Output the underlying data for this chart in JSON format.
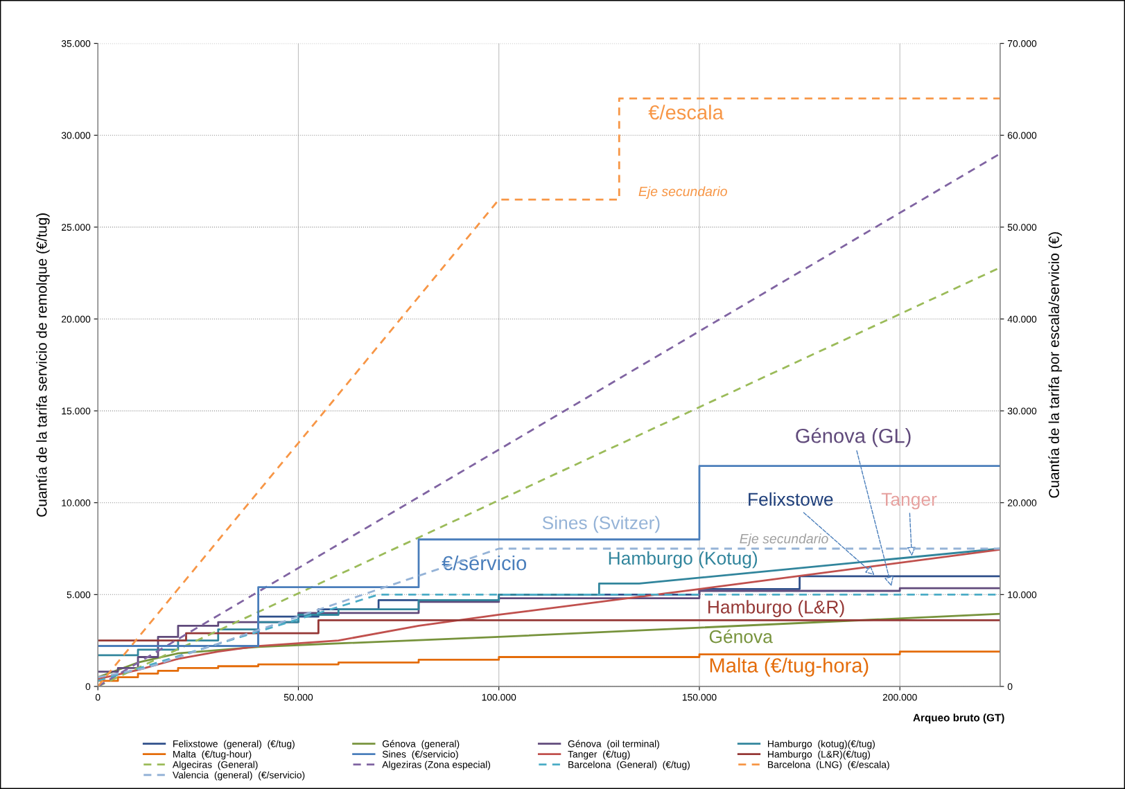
{
  "chart_data": {
    "type": "line",
    "xlabel": "Arqueo bruto (GT)",
    "ylabel": "Cuantía de la tarifa servicio de remolque (€/tug)",
    "y2label": "Cuantía de la tarifa por escala/servicio (€)",
    "xlim": [
      0,
      225000
    ],
    "xticks": [
      {
        "value": 0,
        "label": "0"
      },
      {
        "value": 50000,
        "label": "50.000"
      },
      {
        "value": 100000,
        "label": "100.000"
      },
      {
        "value": 150000,
        "label": "150.000"
      },
      {
        "value": 200000,
        "label": "200.000"
      }
    ],
    "ylim": [
      0,
      35000
    ],
    "yticks": [
      {
        "value": 0,
        "label": "0"
      },
      {
        "value": 5000,
        "label": "5.000"
      },
      {
        "value": 10000,
        "label": "10.000"
      },
      {
        "value": 15000,
        "label": "15.000"
      },
      {
        "value": 20000,
        "label": "20.000"
      },
      {
        "value": 25000,
        "label": "25.000"
      },
      {
        "value": 30000,
        "label": "30.000"
      },
      {
        "value": 35000,
        "label": "35.000"
      }
    ],
    "y2lim": [
      0,
      70000
    ],
    "y2ticks": [
      {
        "value": 0,
        "label": "0"
      },
      {
        "value": 10000,
        "label": "10.000"
      },
      {
        "value": 20000,
        "label": "20.000"
      },
      {
        "value": 30000,
        "label": "30.000"
      },
      {
        "value": 40000,
        "label": "40.000"
      },
      {
        "value": 50000,
        "label": "50.000"
      },
      {
        "value": 60000,
        "label": "60.000"
      },
      {
        "value": 70000,
        "label": "70.000"
      }
    ],
    "grid": true,
    "legend": "bottom",
    "marker": "none",
    "series": [
      {
        "name": "Felixstowe  (general)  (€/tug)",
        "type": "step",
        "color": "#2e4f8a",
        "x": [
          0,
          40000,
          55000,
          70000,
          100000,
          150000,
          175000,
          225000
        ],
        "values": [
          2200,
          3800,
          4200,
          4700,
          5000,
          5300,
          6000,
          6000
        ]
      },
      {
        "name": "Génova  (general)",
        "color": "#77933c",
        "x": [
          0,
          10000,
          20000,
          40000,
          50000,
          100000,
          150000,
          225000
        ],
        "values": [
          500,
          1300,
          1800,
          2150,
          2250,
          2700,
          3200,
          3950
        ]
      },
      {
        "name": "Génova  (oil terminal)",
        "type": "step",
        "color": "#604a7b",
        "x": [
          0,
          5000,
          10000,
          15000,
          20000,
          30000,
          50000,
          80000,
          100000,
          150000,
          200000,
          225000
        ],
        "values": [
          800,
          1000,
          1600,
          2700,
          3300,
          3500,
          4000,
          4600,
          4800,
          5200,
          5350,
          5350
        ]
      },
      {
        "name": "Hamburgo  (kotug)(€/tug)",
        "color": "#31859c",
        "x": [
          0,
          10000,
          10000,
          20000,
          20000,
          30000,
          30000,
          40000,
          40000,
          50000,
          50000,
          60000,
          60000,
          80000,
          80000,
          100000,
          100000,
          125000,
          125000,
          135000,
          225000
        ],
        "values": [
          1700,
          1700,
          2000,
          2000,
          2500,
          2500,
          3100,
          3100,
          3500,
          3500,
          3900,
          3900,
          4200,
          4200,
          4700,
          4700,
          5000,
          5000,
          5600,
          5600,
          7500
        ]
      },
      {
        "name": "Malta  (€/tug-hour)",
        "type": "step",
        "color": "#e46c0a",
        "x": [
          0,
          5000,
          10000,
          15000,
          20000,
          30000,
          40000,
          60000,
          80000,
          100000,
          150000,
          200000,
          225000
        ],
        "values": [
          300,
          500,
          700,
          850,
          1000,
          1100,
          1200,
          1300,
          1450,
          1600,
          1750,
          1900,
          1900
        ]
      },
      {
        "name": "Sines  (€/servicio)",
        "type": "step",
        "axis": "y2",
        "color": "#4a7ebb",
        "x": [
          0,
          40000,
          80000,
          150000,
          225000
        ],
        "values": [
          4400,
          10800,
          16000,
          24000,
          24000
        ]
      },
      {
        "name": "Tanger  (€/tug)",
        "color": "#c0504d",
        "x": [
          0,
          10000,
          20000,
          30000,
          40000,
          60000,
          80000,
          100000,
          150000,
          225000
        ],
        "values": [
          400,
          900,
          1500,
          1900,
          2200,
          2500,
          3300,
          3900,
          5300,
          7450
        ]
      },
      {
        "name": "Hamburgo  (L&R)(€/tug)",
        "type": "step",
        "color": "#953735",
        "x": [
          0,
          22000,
          55000,
          225000
        ],
        "values": [
          2500,
          2900,
          3600,
          3600
        ]
      },
      {
        "name": "Algeciras  (General)",
        "line_style": "dashed",
        "color": "#9bbb59",
        "x": [
          0,
          225000
        ],
        "values": [
          0,
          22800
        ]
      },
      {
        "name": "Algeziras (Zona especial)",
        "line_style": "dashed",
        "color": "#8064a2",
        "x": [
          0,
          225000
        ],
        "values": [
          0,
          29000
        ]
      },
      {
        "name": "Barcelona  (General)  (€/tug)",
        "line_style": "dashed",
        "color": "#4bacc6",
        "x": [
          0,
          70000,
          225000
        ],
        "values": [
          300,
          5000,
          5000
        ]
      },
      {
        "name": "Barcelona  (LNG)  (€/escala)",
        "line_style": "dashed",
        "axis": "y2",
        "color": "#f79646",
        "x": [
          0,
          100000,
          130000,
          130000,
          225000
        ],
        "values": [
          0,
          53000,
          53000,
          64000,
          64000
        ]
      },
      {
        "name": "Valencia  (general)  (€/servicio)",
        "line_style": "dashed",
        "axis": "y2",
        "color": "#95b3d7",
        "x": [
          0,
          12000,
          100000,
          225000
        ],
        "values": [
          1000,
          2000,
          15000,
          15000
        ]
      }
    ],
    "annotations": [
      "€/escala",
      "Eje secundario",
      {
        "text": "Génova (GL)",
        "x": 198000,
        "y": 5350
      },
      {
        "text": "Felixstowe",
        "x": 194000,
        "y": 6000
      },
      {
        "text": "Tanger",
        "x": 203000,
        "y": 7000
      },
      "Sines (Svitzer)",
      "€/servicio",
      "Eje secundario",
      "Hamburgo (Kotug)",
      "Hamburgo (L&R)",
      "Génova",
      "Malta (€/tug-hora)"
    ]
  }
}
